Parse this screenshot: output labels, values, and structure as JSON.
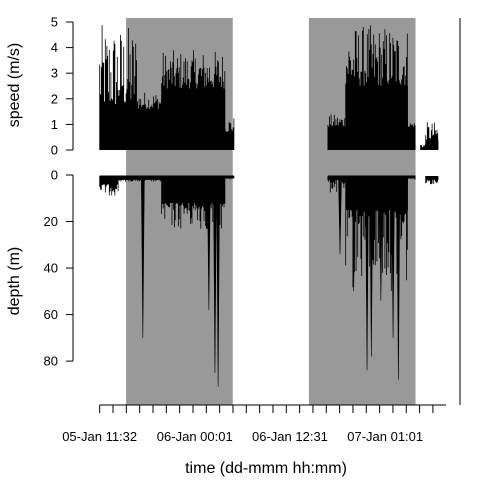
{
  "chart_data": [
    {
      "type": "area",
      "panel": "speed",
      "ylabel": "speed (m/s)",
      "ylim": [
        0,
        5
      ],
      "yticks": [
        0,
        1,
        2,
        3,
        4,
        5
      ],
      "colors": {
        "series": "#000000",
        "night": "#999999"
      },
      "segments": [
        {
          "start": "05-Jan 11:32",
          "end": "05-Jan 16:30",
          "baseline": 1.7,
          "max": 4.9
        },
        {
          "start": "05-Jan 16:30",
          "end": "05-Jan 19:40",
          "baseline": 1.6,
          "max": 2.3
        },
        {
          "start": "05-Jan 19:40",
          "end": "06-Jan 04:00",
          "baseline": 2.4,
          "max": 3.9
        },
        {
          "start": "06-Jan 04:00",
          "end": "06-Jan 05:10",
          "baseline": 0.7,
          "max": 1.3
        },
        {
          "start": "06-Jan 17:30",
          "end": "06-Jan 19:50",
          "baseline": 0.9,
          "max": 1.4
        },
        {
          "start": "06-Jan 19:50",
          "end": "07-Jan 04:00",
          "baseline": 2.5,
          "max": 4.9
        },
        {
          "start": "07-Jan 04:00",
          "end": "07-Jan 05:00",
          "baseline": 0.9,
          "max": 1.1
        },
        {
          "start": "07-Jan 05:40",
          "end": "07-Jan 06:20",
          "baseline": 0.1,
          "max": 0.3
        },
        {
          "start": "07-Jan 06:20",
          "end": "07-Jan 08:00",
          "baseline": 0.4,
          "max": 1.1
        }
      ]
    },
    {
      "type": "area",
      "panel": "depth",
      "ylabel": "depth (m)",
      "ylim": [
        0,
        95
      ],
      "yticks": [
        0,
        20,
        40,
        60,
        80
      ],
      "colors": {
        "series": "#000000",
        "night": "#999999"
      },
      "segments": [
        {
          "start": "05-Jan 11:32",
          "end": "05-Jan 14:00",
          "baseline": 4,
          "max": 9
        },
        {
          "start": "05-Jan 14:00",
          "end": "05-Jan 19:40",
          "baseline": 2,
          "max": 3
        },
        {
          "start": "05-Jan 19:40",
          "end": "06-Jan 04:00",
          "baseline": 12,
          "max": 24
        },
        {
          "start": "06-Jan 04:00",
          "end": "06-Jan 05:10",
          "baseline": 1,
          "max": 2
        },
        {
          "start": "06-Jan 17:30",
          "end": "06-Jan 19:50",
          "baseline": 2,
          "max": 8
        },
        {
          "start": "06-Jan 19:50",
          "end": "07-Jan 04:00",
          "baseline": 15,
          "max": 50
        },
        {
          "start": "07-Jan 04:00",
          "end": "07-Jan 05:00",
          "baseline": 1,
          "max": 2
        },
        {
          "start": "07-Jan 06:20",
          "end": "07-Jan 08:00",
          "baseline": 2,
          "max": 4
        }
      ],
      "spikes": [
        {
          "time": "05-Jan 17:12",
          "value": 70
        },
        {
          "time": "06-Jan 01:52",
          "value": 58
        },
        {
          "time": "06-Jan 02:40",
          "value": 85
        },
        {
          "time": "06-Jan 03:05",
          "value": 91
        },
        {
          "time": "06-Jan 19:05",
          "value": 34
        },
        {
          "time": "06-Jan 20:53",
          "value": 50
        },
        {
          "time": "06-Jan 22:38",
          "value": 84
        },
        {
          "time": "06-Jan 23:12",
          "value": 78
        },
        {
          "time": "07-Jan 00:27",
          "value": 54
        },
        {
          "time": "07-Jan 02:03",
          "value": 70
        },
        {
          "time": "07-Jan 02:45",
          "value": 88
        }
      ]
    }
  ],
  "time_axis": {
    "xlabel": "time (dd-mmm hh:mm)",
    "ticks": [
      "05-Jan 11:32",
      "06-Jan 00:01",
      "06-Jan 12:31",
      "07-Jan 01:01"
    ],
    "start": "05-Jan 10:00",
    "end": "07-Jan 09:00",
    "minor_tick_hours": 1.75
  },
  "night_periods": [
    {
      "start": "05-Jan 15:00",
      "end": "06-Jan 05:00"
    },
    {
      "start": "06-Jan 15:00",
      "end": "07-Jan 05:00"
    }
  ]
}
